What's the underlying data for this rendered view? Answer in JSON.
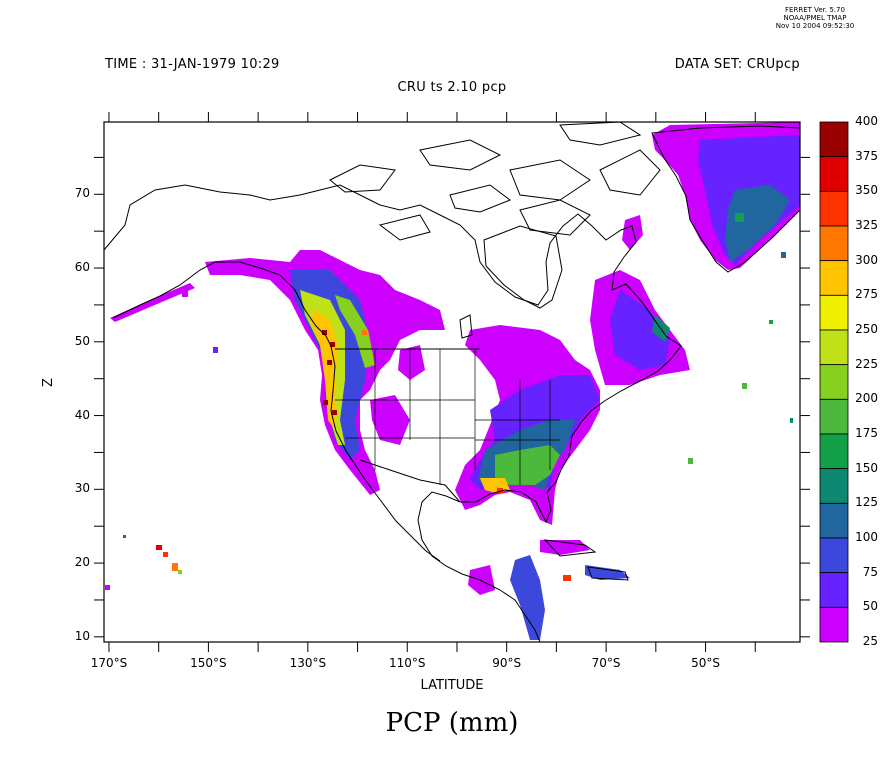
{
  "stamp": {
    "line1": "FERRET Ver. 5.70",
    "line2": "NOAA/PMEL TMAP",
    "line3": "Nov 10 2004 09:52:30"
  },
  "header": {
    "time": "TIME : 31-JAN-1979 10:29",
    "dataset": "DATA SET: CRUpcp",
    "title": "CRU ts 2.10 pcp"
  },
  "axes": {
    "xlabel": "LATITUDE",
    "ylabel": "Z",
    "x_range": [
      -171,
      -31
    ],
    "y_range": [
      9.3,
      79.8
    ],
    "x_ticks": [
      "170°S",
      "150°S",
      "130°S",
      "110°S",
      "90°S",
      "70°S",
      "50°S"
    ],
    "x_tick_values": [
      -170,
      -150,
      -130,
      -110,
      -90,
      -70,
      -50
    ],
    "y_ticks": [
      "10",
      "20",
      "30",
      "40",
      "50",
      "60",
      "70"
    ],
    "y_tick_values": [
      10,
      20,
      30,
      40,
      50,
      60,
      70
    ]
  },
  "variable_label": "PCP (mm)",
  "colorbar": {
    "labels": [
      "400",
      "375",
      "350",
      "325",
      "300",
      "275",
      "250",
      "225",
      "200",
      "175",
      "150",
      "125",
      "100",
      "75",
      "50",
      "25"
    ],
    "colors": [
      "#990000",
      "#e00000",
      "#ff3300",
      "#ff7700",
      "#ffc400",
      "#f0f000",
      "#c0e018",
      "#88d020",
      "#4cb83c",
      "#12a048",
      "#0e8870",
      "#2266a0",
      "#3c48dc",
      "#6622ff",
      "#cc00ff"
    ]
  }
}
